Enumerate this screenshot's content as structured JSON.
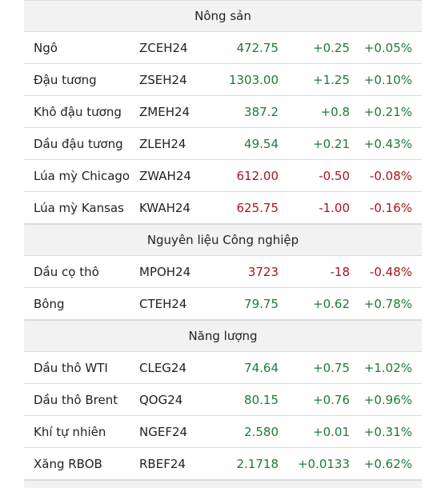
{
  "sections": [
    {
      "title": "Nông sản",
      "rows": [
        {
          "name": "Ngô",
          "symbol": "ZCEH24",
          "last": "472.75",
          "change": "+0.25",
          "pct": "+0.05%",
          "dir": "up"
        },
        {
          "name": "Đậu tương",
          "symbol": "ZSEH24",
          "last": "1303.00",
          "change": "+1.25",
          "pct": "+0.10%",
          "dir": "up"
        },
        {
          "name": "Khô đậu tương",
          "symbol": "ZMEH24",
          "last": "387.2",
          "change": "+0.8",
          "pct": "+0.21%",
          "dir": "up"
        },
        {
          "name": "Dầu đậu tương",
          "symbol": "ZLEH24",
          "last": "49.54",
          "change": "+0.21",
          "pct": "+0.43%",
          "dir": "up"
        },
        {
          "name": "Lúa mỳ Chicago",
          "symbol": "ZWAH24",
          "last": "612.00",
          "change": "-0.50",
          "pct": "-0.08%",
          "dir": "down"
        },
        {
          "name": "Lúa mỳ Kansas",
          "symbol": "KWAH24",
          "last": "625.75",
          "change": "-1.00",
          "pct": "-0.16%",
          "dir": "down"
        }
      ]
    },
    {
      "title": "Nguyên liệu Công nghiệp",
      "rows": [
        {
          "name": "Dầu cọ thô",
          "symbol": "MPOH24",
          "last": "3723",
          "change": "-18",
          "pct": "-0.48%",
          "dir": "down"
        },
        {
          "name": "Bông",
          "symbol": "CTEH24",
          "last": "79.75",
          "change": "+0.62",
          "pct": "+0.78%",
          "dir": "up"
        }
      ]
    },
    {
      "title": "Năng lượng",
      "rows": [
        {
          "name": "Dầu thô WTI",
          "symbol": "CLEG24",
          "last": "74.64",
          "change": "+0.75",
          "pct": "+1.02%",
          "dir": "up"
        },
        {
          "name": "Dầu thô Brent",
          "symbol": "QOG24",
          "last": "80.15",
          "change": "+0.76",
          "pct": "+0.96%",
          "dir": "up"
        },
        {
          "name": "Khí tự nhiên",
          "symbol": "NGEF24",
          "last": "2.580",
          "change": "+0.01",
          "pct": "+0.31%",
          "dir": "up"
        },
        {
          "name": "Xăng RBOB",
          "symbol": "RBEF24",
          "last": "2.1718",
          "change": "+0.0133",
          "pct": "+0.62%",
          "dir": "up"
        }
      ]
    }
  ],
  "colors": {
    "up": "#1e7a3c",
    "down": "#a8141b",
    "header_bg": "#f2f2f2",
    "border": "#dcdcdc"
  }
}
